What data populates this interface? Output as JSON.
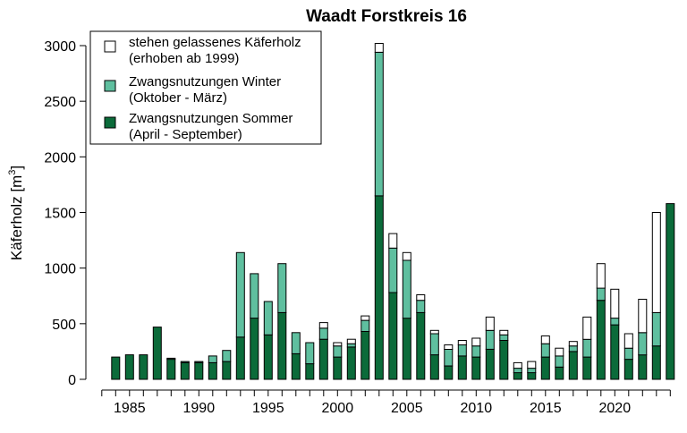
{
  "colors": {
    "summer": "#0b6b3a",
    "winter": "#5fbf9f",
    "standing": "#ffffff",
    "outline": "#000000"
  },
  "chart_data": {
    "type": "bar",
    "stacked": true,
    "title": "Waadt Forstkreis 16",
    "ylabel": "Käferholz [m³]",
    "ylabel_main": "Käferholz [m",
    "ylabel_sup": "3",
    "ylabel_end": "]",
    "ylim": [
      0,
      3150
    ],
    "yticks": [
      0,
      500,
      1000,
      1500,
      2000,
      2500,
      3000
    ],
    "xticks_labeled": [
      1985,
      1990,
      1995,
      2000,
      2005,
      2010,
      2015,
      2020
    ],
    "grid": false,
    "legend_position": "top-left",
    "legend": [
      {
        "key": "standing",
        "lines": [
          "stehen gelassenes Käferholz",
          "(erhoben ab 1999)"
        ]
      },
      {
        "key": "winter",
        "lines": [
          "Zwangsnutzungen Winter",
          "(Oktober - März)"
        ]
      },
      {
        "key": "summer",
        "lines": [
          "Zwangsnutzungen Sommer",
          "(April - September)"
        ]
      }
    ],
    "categories": [
      1984,
      1985,
      1986,
      1987,
      1988,
      1989,
      1990,
      1991,
      1992,
      1993,
      1994,
      1995,
      1996,
      1997,
      1998,
      1999,
      2000,
      2001,
      2002,
      2003,
      2004,
      2005,
      2006,
      2007,
      2008,
      2009,
      2010,
      2011,
      2012,
      2013,
      2014,
      2015,
      2016,
      2017,
      2018,
      2019,
      2020,
      2021,
      2022,
      2023,
      2024
    ],
    "series": [
      {
        "key": "summer",
        "name": "Zwangsnutzungen Sommer (April - September)",
        "values": [
          200,
          220,
          220,
          470,
          180,
          150,
          150,
          150,
          160,
          380,
          550,
          400,
          600,
          230,
          140,
          360,
          200,
          290,
          430,
          1650,
          780,
          550,
          600,
          220,
          120,
          210,
          200,
          270,
          350,
          60,
          60,
          200,
          110,
          250,
          200,
          710,
          490,
          180,
          220,
          300,
          1580
        ]
      },
      {
        "key": "winter",
        "name": "Zwangsnutzungen Winter (Oktober - März)",
        "values": [
          0,
          0,
          0,
          0,
          10,
          10,
          10,
          60,
          100,
          760,
          400,
          300,
          440,
          190,
          190,
          100,
          100,
          30,
          100,
          1290,
          400,
          520,
          110,
          190,
          150,
          100,
          100,
          170,
          50,
          40,
          40,
          120,
          100,
          50,
          160,
          110,
          60,
          100,
          200,
          300,
          0
        ]
      },
      {
        "key": "standing",
        "name": "stehen gelassenes Käferholz (erhoben ab 1999)",
        "values": [
          0,
          0,
          0,
          0,
          0,
          0,
          0,
          0,
          0,
          0,
          0,
          0,
          0,
          0,
          0,
          50,
          30,
          40,
          40,
          80,
          130,
          70,
          50,
          30,
          40,
          40,
          70,
          120,
          40,
          50,
          60,
          70,
          70,
          40,
          200,
          220,
          260,
          130,
          300,
          900,
          0
        ]
      }
    ]
  }
}
